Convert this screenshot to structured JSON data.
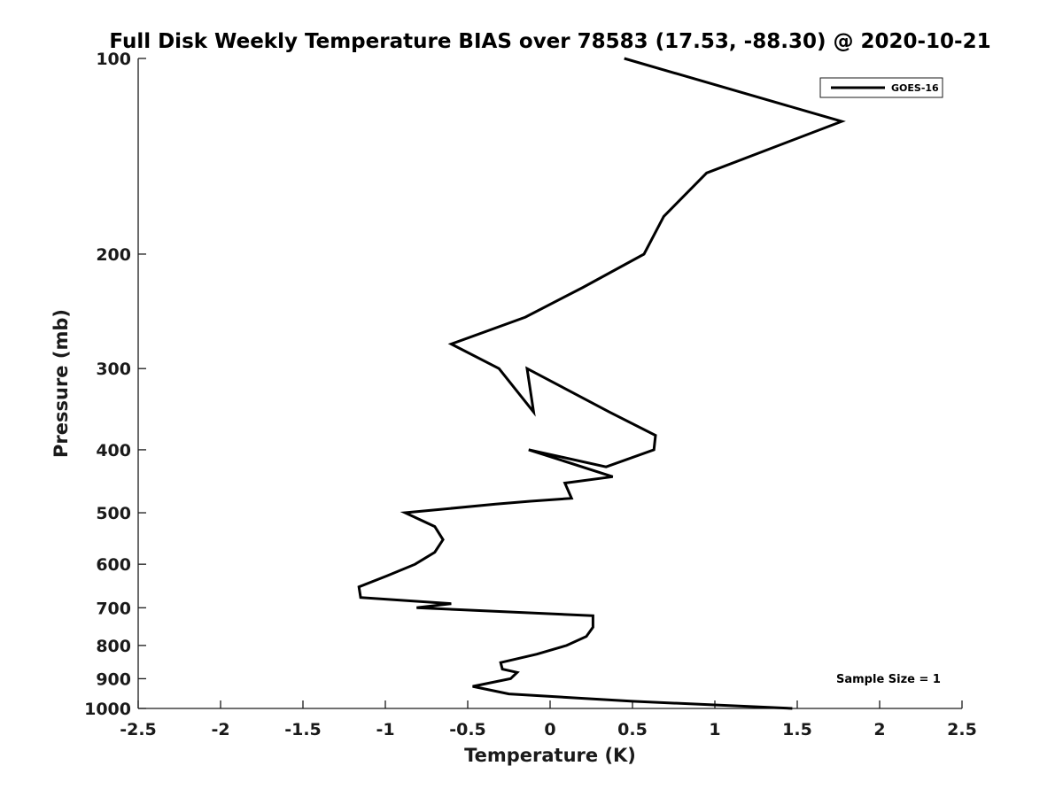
{
  "chart_data": {
    "type": "line",
    "title": "Full Disk Weekly Temperature BIAS over 78583 (17.53, -88.30) @ 2020-10-21",
    "xlabel": "Temperature (K)",
    "ylabel": "Pressure (mb)",
    "xlim": [
      -2.5,
      2.5
    ],
    "ylim": [
      1000,
      100
    ],
    "yscale": "log",
    "y_reversed": true,
    "grid": false,
    "legend_position": "top-right",
    "xticks": [
      -2.5,
      -2,
      -1.5,
      -1,
      -0.5,
      0,
      0.5,
      1,
      1.5,
      2,
      2.5
    ],
    "xtick_labels": [
      "-2.5",
      "-2",
      "-1.5",
      "-1",
      "-0.5",
      "0",
      "0.5",
      "1",
      "1.5",
      "2",
      "2.5"
    ],
    "yticks": [
      100,
      200,
      300,
      400,
      500,
      600,
      700,
      800,
      900,
      1000
    ],
    "ytick_labels": [
      "100",
      "200",
      "300",
      "400",
      "500",
      "600",
      "700",
      "800",
      "900",
      "1000"
    ],
    "series": [
      {
        "name": "GOES-16",
        "color": "#000000",
        "points": [
          {
            "x": 0.45,
            "y": 100
          },
          {
            "x": 1.77,
            "y": 125
          },
          {
            "x": 0.95,
            "y": 150
          },
          {
            "x": 0.69,
            "y": 175
          },
          {
            "x": 0.57,
            "y": 200
          },
          {
            "x": 0.2,
            "y": 225
          },
          {
            "x": -0.15,
            "y": 250
          },
          {
            "x": -0.6,
            "y": 275
          },
          {
            "x": -0.31,
            "y": 300
          },
          {
            "x": -0.1,
            "y": 350
          },
          {
            "x": -0.14,
            "y": 300
          },
          {
            "x": 0.36,
            "y": 350
          },
          {
            "x": 0.64,
            "y": 380
          },
          {
            "x": 0.63,
            "y": 400
          },
          {
            "x": 0.34,
            "y": 425
          },
          {
            "x": -0.13,
            "y": 400
          },
          {
            "x": 0.38,
            "y": 440
          },
          {
            "x": 0.09,
            "y": 450
          },
          {
            "x": 0.13,
            "y": 475
          },
          {
            "x": -0.12,
            "y": 480
          },
          {
            "x": -0.33,
            "y": 485
          },
          {
            "x": -0.88,
            "y": 500
          },
          {
            "x": -0.7,
            "y": 525
          },
          {
            "x": -0.65,
            "y": 550
          },
          {
            "x": -0.7,
            "y": 575
          },
          {
            "x": -0.82,
            "y": 600
          },
          {
            "x": -0.99,
            "y": 625
          },
          {
            "x": -1.16,
            "y": 650
          },
          {
            "x": -1.15,
            "y": 675
          },
          {
            "x": -0.6,
            "y": 690
          },
          {
            "x": -0.81,
            "y": 700
          },
          {
            "x": 0.26,
            "y": 720
          },
          {
            "x": 0.26,
            "y": 750
          },
          {
            "x": 0.22,
            "y": 775
          },
          {
            "x": 0.1,
            "y": 800
          },
          {
            "x": -0.08,
            "y": 825
          },
          {
            "x": -0.3,
            "y": 850
          },
          {
            "x": -0.29,
            "y": 870
          },
          {
            "x": -0.2,
            "y": 880
          },
          {
            "x": -0.24,
            "y": 900
          },
          {
            "x": -0.47,
            "y": 925
          },
          {
            "x": -0.25,
            "y": 950
          },
          {
            "x": 0.5,
            "y": 975
          },
          {
            "x": 1.47,
            "y": 1000
          }
        ]
      }
    ],
    "annotations": [
      {
        "text": "Sample Size = 1",
        "position": "bottom-right"
      }
    ]
  }
}
